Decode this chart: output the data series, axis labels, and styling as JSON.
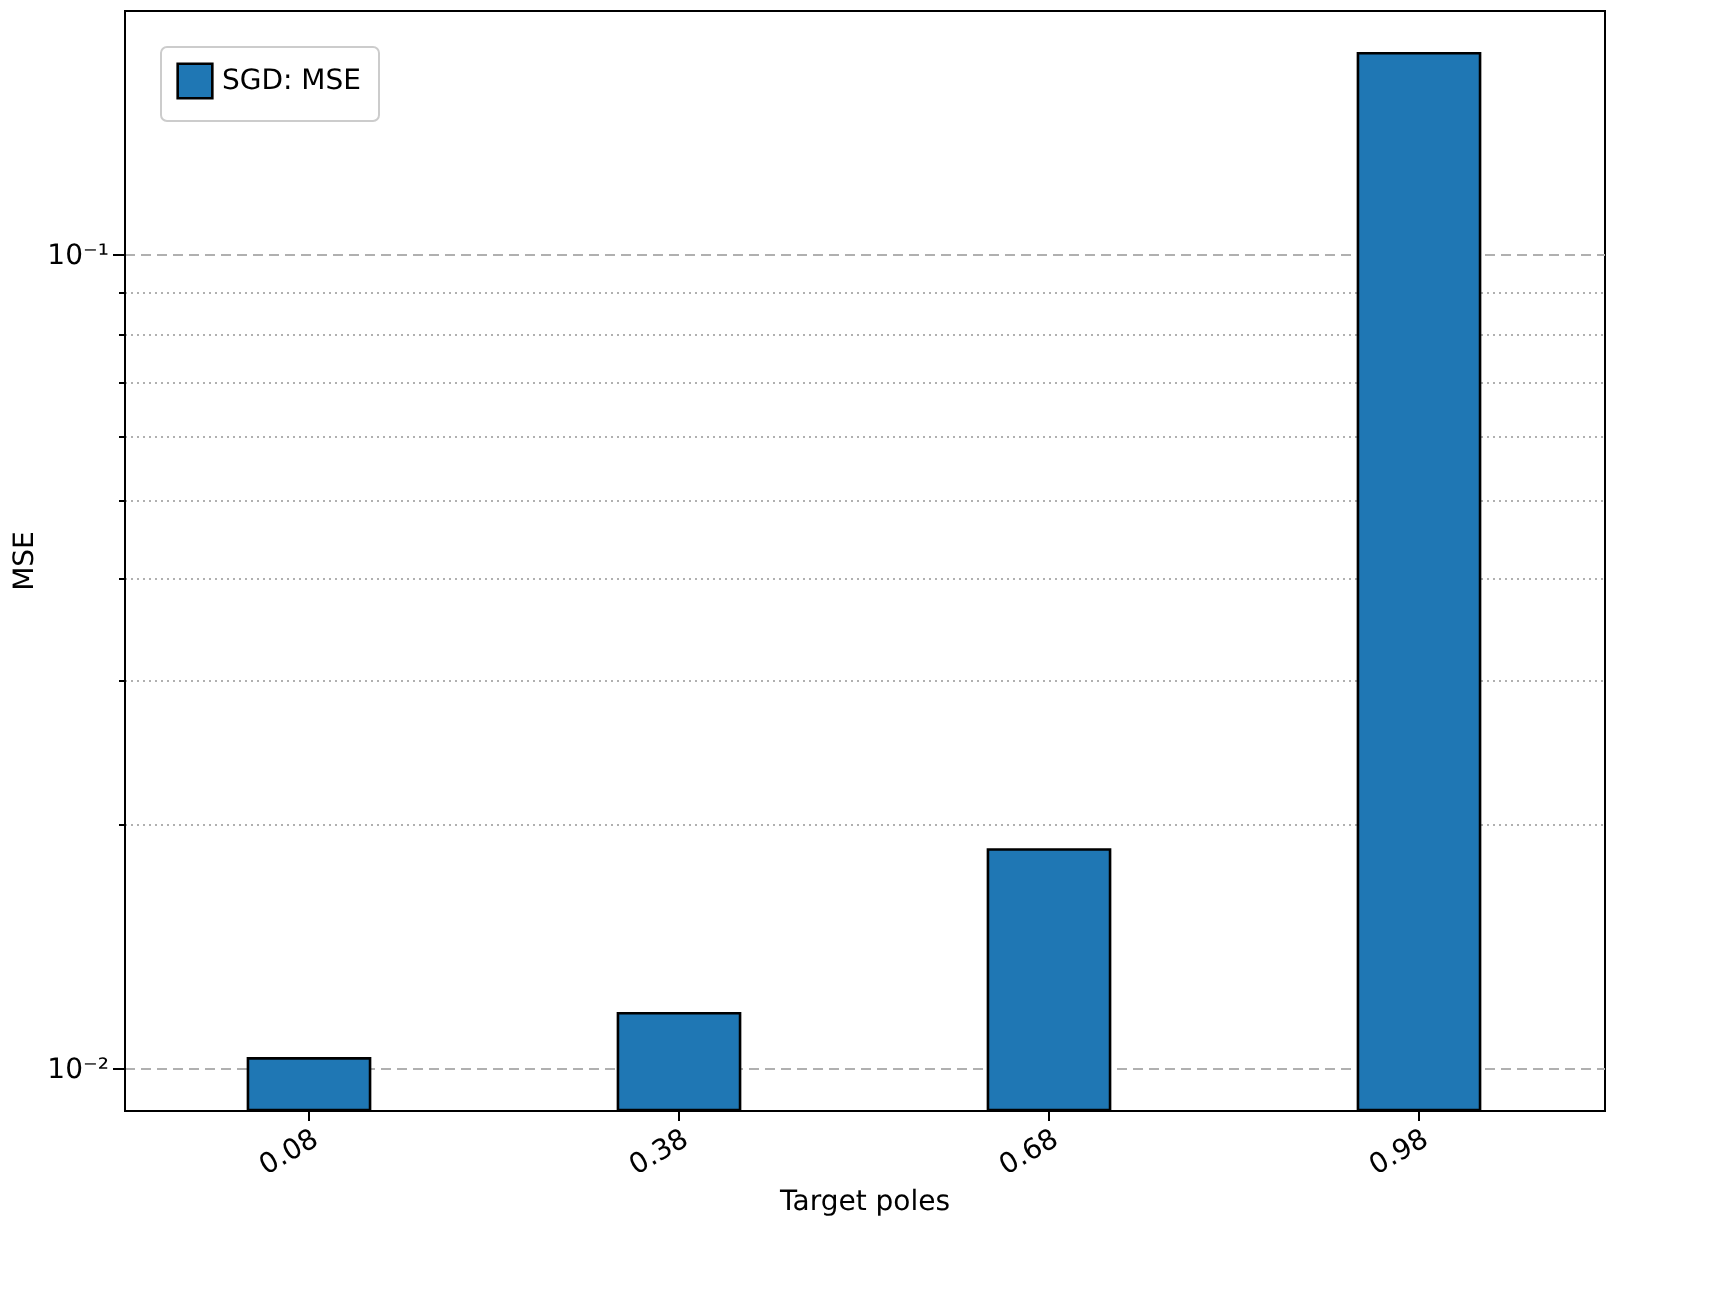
{
  "chart_data": {
    "type": "bar",
    "xlabel": "Target poles",
    "ylabel": "MSE",
    "categories": [
      "0.08",
      "0.38",
      "0.68",
      "0.98"
    ],
    "series": [
      {
        "name": "SGD: MSE",
        "color": "#1f77b4",
        "values": [
          0.0103,
          0.0117,
          0.0186,
          0.177
        ]
      }
    ],
    "log": "y",
    "ylim": [
      0.0089,
      0.2
    ],
    "yticks": [
      {
        "value": 0.01,
        "label": "10⁻²"
      },
      {
        "value": 0.02,
        "label": null
      },
      {
        "value": 0.03,
        "label": null
      },
      {
        "value": 0.04,
        "label": null
      },
      {
        "value": 0.05,
        "label": null
      },
      {
        "value": 0.06,
        "label": null
      },
      {
        "value": 0.07,
        "label": null
      },
      {
        "value": 0.08,
        "label": null
      },
      {
        "value": 0.09,
        "label": null
      },
      {
        "value": 0.1,
        "label": "10⁻¹"
      }
    ],
    "grid": "y",
    "legend": "top left"
  }
}
